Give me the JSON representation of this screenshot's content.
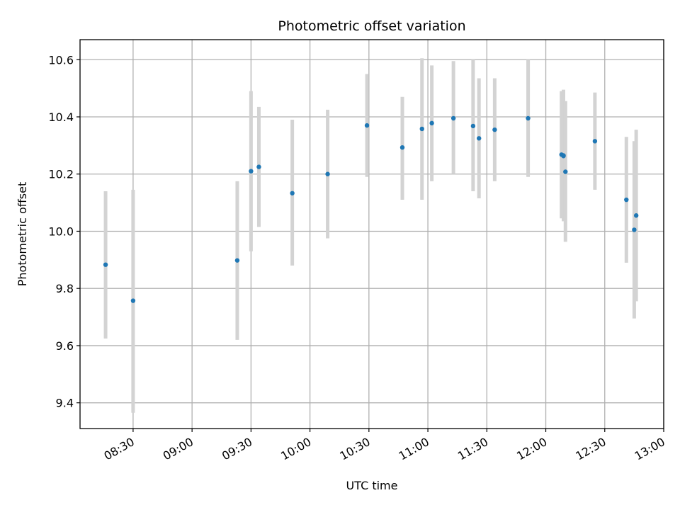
{
  "chart_data": {
    "type": "scatter",
    "title": "Photometric offset variation",
    "xlabel": "UTC time",
    "ylabel": "Photometric offset",
    "x_tick_labels": [
      "08:30",
      "09:00",
      "09:30",
      "10:00",
      "10:30",
      "11:00",
      "11:30",
      "12:00",
      "12:30",
      "13:00"
    ],
    "x_ticks": [
      "08:30",
      "09:00",
      "09:30",
      "10:00",
      "10:30",
      "11:00",
      "11:30",
      "12:00",
      "12:30",
      "13:00"
    ],
    "y_tick_labels": [
      "9.4",
      "9.6",
      "9.8",
      "10.0",
      "10.2",
      "10.4",
      "10.6"
    ],
    "y_ticks": [
      9.4,
      9.6,
      9.8,
      10.0,
      10.2,
      10.4,
      10.6
    ],
    "xlim": [
      "08:03",
      "13:00"
    ],
    "ylim": [
      9.31,
      10.67
    ],
    "grid": true,
    "colors": {
      "points": "#1f77b4",
      "errorbars": "#d3d3d3",
      "grid": "#b0b0b0"
    },
    "points": [
      {
        "x": "08:16",
        "y": 9.883,
        "ylo": 9.625,
        "yhi": 10.14
      },
      {
        "x": "08:30",
        "y": 9.757,
        "ylo": 9.365,
        "yhi": 10.145
      },
      {
        "x": "09:23",
        "y": 9.898,
        "ylo": 9.62,
        "yhi": 10.175
      },
      {
        "x": "09:30",
        "y": 10.21,
        "ylo": 9.93,
        "yhi": 10.49
      },
      {
        "x": "09:34",
        "y": 10.225,
        "ylo": 10.015,
        "yhi": 10.435
      },
      {
        "x": "09:51",
        "y": 10.133,
        "ylo": 9.88,
        "yhi": 10.39
      },
      {
        "x": "10:09",
        "y": 10.2,
        "ylo": 9.975,
        "yhi": 10.425
      },
      {
        "x": "10:29",
        "y": 10.37,
        "ylo": 10.19,
        "yhi": 10.55
      },
      {
        "x": "10:47",
        "y": 10.293,
        "ylo": 10.11,
        "yhi": 10.47
      },
      {
        "x": "10:57",
        "y": 10.358,
        "ylo": 10.11,
        "yhi": 10.605
      },
      {
        "x": "11:02",
        "y": 10.378,
        "ylo": 10.175,
        "yhi": 10.58
      },
      {
        "x": "11:13",
        "y": 10.395,
        "ylo": 10.2,
        "yhi": 10.595
      },
      {
        "x": "11:23",
        "y": 10.368,
        "ylo": 10.14,
        "yhi": 10.6
      },
      {
        "x": "11:26",
        "y": 10.325,
        "ylo": 10.115,
        "yhi": 10.535
      },
      {
        "x": "11:34",
        "y": 10.355,
        "ylo": 10.175,
        "yhi": 10.535
      },
      {
        "x": "11:51",
        "y": 10.395,
        "ylo": 10.19,
        "yhi": 10.6
      },
      {
        "x": "12:08",
        "y": 10.268,
        "ylo": 10.045,
        "yhi": 10.49
      },
      {
        "x": "12:09",
        "y": 10.265,
        "ylo": 10.035,
        "yhi": 10.495
      },
      {
        "x": "12:09",
        "y": 10.263,
        "ylo": 10.045,
        "yhi": 10.48
      },
      {
        "x": "12:10",
        "y": 10.208,
        "ylo": 9.963,
        "yhi": 10.455
      },
      {
        "x": "12:25",
        "y": 10.315,
        "ylo": 10.145,
        "yhi": 10.485
      },
      {
        "x": "12:41",
        "y": 10.11,
        "ylo": 9.89,
        "yhi": 10.33
      },
      {
        "x": "12:45",
        "y": 10.005,
        "ylo": 9.695,
        "yhi": 10.315
      },
      {
        "x": "12:46",
        "y": 10.055,
        "ylo": 9.755,
        "yhi": 10.355
      }
    ]
  }
}
